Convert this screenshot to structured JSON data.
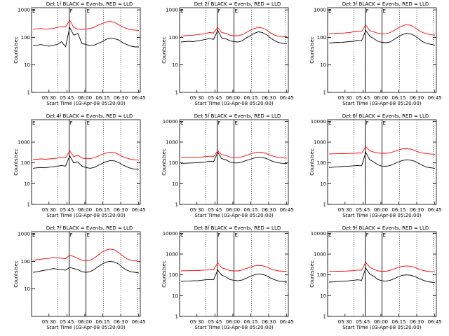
{
  "chart_data": [
    {
      "type": "line",
      "title": "Det 1f BLACK = Events, RED = LLD",
      "ylabel": "Counts/sec",
      "xlabel": "Start Time (03-Apr-08 05:20:00)",
      "x_ticks": [
        "05:30",
        "05:45",
        "06:00",
        "06:15",
        "06:30",
        "06:45"
      ],
      "y_ticks": [
        "1",
        "10",
        "100",
        "1000"
      ],
      "ylim": [
        1,
        1200
      ],
      "marker_labels": [
        "E",
        "F",
        "E"
      ],
      "series": [
        {
          "color": "#000000",
          "values": [
            50,
            52,
            55,
            50,
            48,
            52,
            55,
            70,
            45,
            230,
            120,
            140,
            60,
            55,
            50,
            52,
            60,
            70,
            85,
            95,
            90,
            80,
            65,
            55,
            48,
            45,
            45
          ]
        },
        {
          "color": "#ff0000",
          "values": [
            200,
            205,
            210,
            200,
            205,
            210,
            230,
            250,
            240,
            420,
            230,
            200,
            195,
            200,
            210,
            230,
            280,
            320,
            360,
            380,
            350,
            290,
            240,
            210,
            190,
            185,
            180
          ]
        }
      ]
    },
    {
      "type": "line",
      "title": "Det 2f BLACK = Events, RED = LLD",
      "ylabel": "Counts/sec",
      "xlabel": "Start Time (03-Apr-08 05:20:00)",
      "x_ticks": [
        "05:30",
        "05:45",
        "06:00",
        "06:15",
        "06:30",
        "06:45"
      ],
      "y_ticks": [
        "1",
        "10",
        "100",
        "1000"
      ],
      "ylim": [
        1,
        1200
      ],
      "marker_labels": [
        "E",
        "F",
        "E"
      ],
      "series": [
        {
          "color": "#000000",
          "values": [
            68,
            70,
            72,
            70,
            75,
            78,
            85,
            90,
            85,
            180,
            95,
            90,
            75,
            70,
            68,
            75,
            95,
            115,
            140,
            160,
            150,
            125,
            95,
            75,
            65,
            60,
            58
          ]
        },
        {
          "color": "#ff0000",
          "values": [
            110,
            115,
            118,
            120,
            125,
            130,
            140,
            150,
            145,
            230,
            150,
            140,
            120,
            115,
            115,
            125,
            150,
            180,
            210,
            230,
            220,
            185,
            145,
            120,
            110,
            105,
            105
          ]
        }
      ]
    },
    {
      "type": "line",
      "title": "Det 3f BLACK = Events, RED = LLD",
      "ylabel": "Counts/sec",
      "xlabel": "Start Time (03-Apr-08 05:20:00)",
      "x_ticks": [
        "05:30",
        "05:45",
        "06:00",
        "06:15",
        "06:30",
        "06:45"
      ],
      "y_ticks": [
        "1",
        "10",
        "100",
        "1000"
      ],
      "ylim": [
        1,
        1200
      ],
      "marker_labels": [
        "E",
        "F",
        "E"
      ],
      "series": [
        {
          "color": "#000000",
          "values": [
            62,
            64,
            66,
            65,
            68,
            70,
            72,
            78,
            75,
            180,
            110,
            90,
            72,
            66,
            64,
            68,
            85,
            105,
            125,
            140,
            135,
            115,
            90,
            70,
            60,
            56,
            52
          ]
        },
        {
          "color": "#ff0000",
          "values": [
            135,
            140,
            142,
            140,
            145,
            150,
            160,
            170,
            165,
            280,
            175,
            160,
            140,
            135,
            135,
            150,
            180,
            220,
            260,
            290,
            275,
            230,
            180,
            150,
            135,
            125,
            120
          ]
        }
      ]
    },
    {
      "type": "line",
      "title": "Det 4f BLACK = Events, RED = LLD",
      "ylabel": "Counts/sec",
      "xlabel": "Start Time (03-Apr-08 05:20:00)",
      "x_ticks": [
        "05:30",
        "05:45",
        "06:00",
        "06:15",
        "06:30",
        "06:45"
      ],
      "y_ticks": [
        "1",
        "10",
        "100",
        "1000"
      ],
      "ylim": [
        1,
        12000
      ],
      "marker_labels": [
        "E",
        "F",
        "E"
      ],
      "series": [
        {
          "color": "#000000",
          "values": [
            55,
            58,
            60,
            58,
            62,
            65,
            70,
            75,
            70,
            220,
            100,
            110,
            70,
            60,
            55,
            60,
            75,
            95,
            115,
            130,
            125,
            105,
            80,
            65,
            55,
            50,
            48
          ]
        },
        {
          "color": "#ff0000",
          "values": [
            145,
            150,
            155,
            150,
            155,
            160,
            170,
            180,
            175,
            380,
            200,
            230,
            170,
            160,
            160,
            175,
            210,
            260,
            300,
            330,
            310,
            260,
            200,
            170,
            150,
            140,
            135
          ]
        }
      ]
    },
    {
      "type": "line",
      "title": "Det 5f BLACK = Events, RED = LLD",
      "ylabel": "Counts/sec",
      "xlabel": "Start Time (03-Apr-08 05:20:00)",
      "x_ticks": [
        "05:30",
        "05:45",
        "06:00",
        "06:15",
        "06:30",
        "06:45"
      ],
      "y_ticks": [
        "1",
        "10",
        "100",
        "1000",
        "10000"
      ],
      "ylim": [
        1,
        12000
      ],
      "marker_labels": [
        "E",
        "F",
        "E"
      ],
      "series": [
        {
          "color": "#000000",
          "values": [
            95,
            96,
            98,
            100,
            102,
            105,
            110,
            120,
            115,
            320,
            160,
            140,
            110,
            100,
            100,
            110,
            130,
            150,
            170,
            185,
            180,
            160,
            130,
            110,
            100,
            95,
            92
          ]
        },
        {
          "color": "#ff0000",
          "values": [
            175,
            178,
            180,
            182,
            185,
            190,
            200,
            210,
            205,
            380,
            250,
            230,
            190,
            180,
            180,
            195,
            230,
            270,
            310,
            330,
            320,
            280,
            230,
            200,
            180,
            175,
            170
          ]
        }
      ]
    },
    {
      "type": "line",
      "title": "Det 6f BLACK = Events, RED = LLD",
      "ylabel": "Counts/sec",
      "xlabel": "Start Time (03-Apr-08 05:20:00)",
      "x_ticks": [
        "05:30",
        "05:45",
        "06:00",
        "06:15",
        "06:30",
        "06:45"
      ],
      "y_ticks": [
        "1",
        "10",
        "100",
        "1000",
        "10000"
      ],
      "ylim": [
        1,
        12000
      ],
      "marker_labels": [
        "E",
        "F",
        "E"
      ],
      "series": [
        {
          "color": "#000000",
          "values": [
            60,
            62,
            64,
            66,
            68,
            70,
            72,
            75,
            72,
            320,
            140,
            110,
            80,
            70,
            68,
            75,
            90,
            110,
            130,
            140,
            135,
            120,
            95,
            75,
            62,
            58,
            55
          ]
        },
        {
          "color": "#ff0000",
          "values": [
            270,
            272,
            275,
            278,
            280,
            285,
            290,
            300,
            295,
            600,
            380,
            330,
            300,
            290,
            290,
            310,
            350,
            420,
            470,
            480,
            460,
            400,
            330,
            295,
            275,
            265,
            260
          ]
        }
      ]
    },
    {
      "type": "line",
      "title": "Det 7f BLACK = Events, RED = LLD",
      "ylabel": "Counts/sec",
      "xlabel": "Start Time (03-Apr-08 05:20:00)",
      "x_ticks": [
        "05:30",
        "05:45",
        "06:00",
        "06:15",
        "06:30",
        "06:45"
      ],
      "y_ticks": [
        "10",
        "100",
        "1000"
      ],
      "ylim": [
        1,
        1200
      ],
      "marker_labels": [
        "E",
        "F",
        "E"
      ],
      "series": [
        {
          "color": "#000000",
          "values": [
            40,
            42,
            45,
            48,
            50,
            55,
            52,
            50,
            48,
            60,
            55,
            50,
            42,
            40,
            42,
            50,
            65,
            80,
            95,
            100,
            95,
            80,
            60,
            48,
            42,
            40,
            38
          ]
        },
        {
          "color": "#ff0000",
          "values": [
            110,
            115,
            120,
            125,
            130,
            140,
            135,
            130,
            125,
            170,
            150,
            130,
            110,
            105,
            110,
            130,
            170,
            220,
            260,
            280,
            260,
            210,
            160,
            125,
            110,
            105,
            100
          ]
        }
      ]
    },
    {
      "type": "line",
      "title": "Det 8f BLACK = Events, RED = LLD",
      "ylabel": "Counts/sec",
      "xlabel": "Start Time (03-Apr-08 05:20:00)",
      "x_ticks": [
        "05:30",
        "05:45",
        "06:00",
        "06:15",
        "06:30",
        "06:45"
      ],
      "y_ticks": [
        "1",
        "10",
        "100",
        "1000",
        "10000"
      ],
      "ylim": [
        1,
        12000
      ],
      "marker_labels": [
        "E",
        "F",
        "E"
      ],
      "series": [
        {
          "color": "#000000",
          "values": [
            48,
            50,
            50,
            52,
            52,
            55,
            58,
            60,
            58,
            170,
            95,
            80,
            60,
            55,
            52,
            56,
            68,
            85,
            100,
            110,
            105,
            90,
            70,
            58,
            50,
            48,
            45
          ]
        },
        {
          "color": "#ff0000",
          "values": [
            155,
            158,
            160,
            160,
            162,
            165,
            170,
            180,
            175,
            380,
            220,
            190,
            160,
            155,
            155,
            170,
            200,
            240,
            270,
            285,
            275,
            240,
            195,
            170,
            155,
            150,
            145
          ]
        }
      ]
    },
    {
      "type": "line",
      "title": "Det 9f BLACK = Events, RED = LLD",
      "ylabel": "Counts/sec",
      "xlabel": "Start Time (03-Apr-08 05:20:00)",
      "x_ticks": [
        "05:30",
        "05:45",
        "06:00",
        "06:15",
        "06:30",
        "06:45"
      ],
      "y_ticks": [
        "1",
        "10",
        "100",
        "1000",
        "10000"
      ],
      "ylim": [
        1,
        12000
      ],
      "marker_labels": [
        "E",
        "F",
        "E"
      ],
      "series": [
        {
          "color": "#000000",
          "values": [
            45,
            46,
            48,
            48,
            50,
            52,
            55,
            58,
            55,
            210,
            110,
            85,
            60,
            52,
            50,
            55,
            65,
            80,
            95,
            100,
            96,
            85,
            68,
            56,
            48,
            45,
            42
          ]
        },
        {
          "color": "#ff0000",
          "values": [
            145,
            148,
            150,
            150,
            152,
            155,
            160,
            170,
            168,
            400,
            230,
            185,
            155,
            150,
            150,
            165,
            195,
            230,
            260,
            270,
            262,
            230,
            190,
            165,
            150,
            145,
            140
          ]
        }
      ]
    }
  ]
}
